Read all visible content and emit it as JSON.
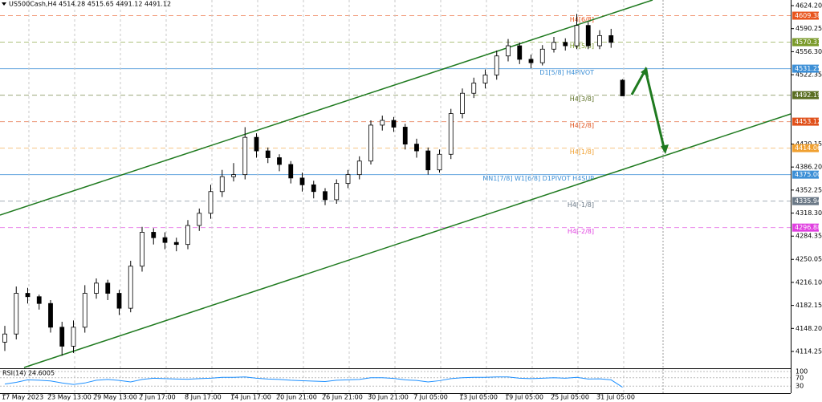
{
  "chart_data": {
    "type": "candlestick",
    "title": "US500Cash,H4  4514.28 4515.65 4491.12 4491.12",
    "categories": [
      "17 May 2023",
      null,
      null,
      null,
      "23 May 13:00",
      null,
      null,
      null,
      "29 May 13:00",
      null,
      null,
      null,
      "2 Jun 17:00",
      null,
      null,
      null,
      "8 Jun 17:00",
      null,
      null,
      null,
      "14 Jun 17:00",
      null,
      null,
      null,
      "20 Jun 21:00",
      null,
      null,
      null,
      "26 Jun 21:00",
      null,
      null,
      null,
      "30 Jun 21:00",
      null,
      null,
      null,
      "7 Jul 05:00",
      null,
      null,
      null,
      "13 Jul 05:00",
      null,
      null,
      null,
      "19 Jul 05:00",
      null,
      null,
      null,
      "25 Jul 05:00",
      null,
      null,
      null,
      "31 Jul 05:00",
      null,
      null
    ],
    "open": [
      4128,
      4140,
      4200,
      4195,
      4185,
      4150,
      4122,
      4150,
      4200,
      4215,
      4200,
      4178,
      4240,
      4290,
      4282,
      4275,
      4272,
      4300,
      4318,
      4350,
      4372,
      4375,
      4430,
      4410,
      4400,
      4390,
      4370,
      4360,
      4350,
      4338,
      4362,
      4375,
      4395,
      4448,
      4455,
      4445,
      4420,
      4410,
      4382,
      4405,
      4465,
      4495,
      4510,
      4522,
      4550,
      4565,
      4545,
      4540,
      4560,
      4570,
      4565,
      4595,
      4565,
      4580,
      4514.28
    ],
    "high": [
      4152,
      4210,
      4208,
      4198,
      4190,
      4158,
      4160,
      4212,
      4222,
      4220,
      4205,
      4248,
      4298,
      4296,
      4290,
      4282,
      4308,
      4325,
      4360,
      4382,
      4392,
      4445,
      4436,
      4415,
      4405,
      4395,
      4378,
      4366,
      4355,
      4368,
      4382,
      4402,
      4455,
      4462,
      4460,
      4450,
      4428,
      4415,
      4412,
      4472,
      4502,
      4518,
      4530,
      4558,
      4575,
      4570,
      4552,
      4566,
      4578,
      4576,
      4612,
      4600,
      4588,
      4590,
      4515.65
    ],
    "low": [
      4115,
      4132,
      4185,
      4176,
      4142,
      4108,
      4112,
      4142,
      4192,
      4190,
      4168,
      4172,
      4232,
      4272,
      4265,
      4262,
      4265,
      4292,
      4310,
      4342,
      4365,
      4368,
      4400,
      4392,
      4380,
      4362,
      4350,
      4340,
      4330,
      4332,
      4355,
      4368,
      4390,
      4440,
      4438,
      4412,
      4400,
      4375,
      4378,
      4398,
      4458,
      4488,
      4502,
      4515,
      4542,
      4538,
      4532,
      4536,
      4555,
      4558,
      4560,
      4560,
      4560,
      4562,
      4491.12
    ],
    "close": [
      4140,
      4200,
      4195,
      4185,
      4150,
      4122,
      4150,
      4200,
      4215,
      4200,
      4178,
      4240,
      4290,
      4282,
      4275,
      4272,
      4300,
      4318,
      4350,
      4372,
      4375,
      4430,
      4410,
      4400,
      4390,
      4370,
      4360,
      4350,
      4338,
      4362,
      4375,
      4395,
      4448,
      4455,
      4445,
      4420,
      4410,
      4382,
      4405,
      4465,
      4495,
      4510,
      4522,
      4550,
      4565,
      4545,
      4540,
      4560,
      4570,
      4565,
      4595,
      4565,
      4580,
      4570,
      4491.12
    ],
    "up_color": "#ffffff",
    "down_color": "#000000",
    "ylim": [
      4090.6,
      4632.5
    ],
    "yticks": [
      {
        "value": 4624.2,
        "label": "4624.20"
      },
      4590.25,
      {
        "value": 4556.3,
        "label": "4556.30"
      },
      4522.35,
      4420.15,
      {
        "value": 4386.2,
        "label": "4386.20"
      },
      4352.25,
      {
        "value": 4318.3,
        "label": "4318.30"
      },
      4284.35,
      4250.05,
      {
        "value": 4216.1,
        "label": "4216.10"
      },
      4182.15,
      {
        "value": 4148.2,
        "label": "4148.20"
      },
      4114.25
    ],
    "levels": [
      {
        "name": "H4[6/8]",
        "value": 4609.38,
        "color": "#e8541c"
      },
      {
        "name": "H4[5/8]",
        "value": 4570.31,
        "color": "#7a9a2a"
      },
      {
        "name": "D1[5/8] H4PIVOT",
        "value": 4531.25,
        "color": "#3c8fd6"
      },
      {
        "name": "H4[3/8]",
        "value": 4492.19,
        "color": "#5a6e22"
      },
      {
        "name": "H4[2/8]",
        "value": 4453.12,
        "color": "#e0501a"
      },
      {
        "name": "H4[1/8]",
        "value": 4414.06,
        "color": "#f0a030"
      },
      {
        "name": "MN1[7/8] W1[6/8] D1PIVOT H4SUP",
        "value": 4375,
        "value_label": "4375.00",
        "color": "#3c8fd6"
      },
      {
        "name": "H4[-1/8]",
        "value": 4335.94,
        "color": "#6a7886"
      },
      {
        "name": "H4[-2/8]",
        "value": 4296.88,
        "color": "#e040e0"
      }
    ],
    "rsi": {
      "title": "RSI(14) 24.6005",
      "color": "#1e90ff",
      "ylim": [
        0,
        100
      ],
      "yticks": [
        100,
        70,
        30
      ],
      "values": [
        40,
        48,
        60,
        58,
        55,
        45,
        38,
        45,
        58,
        62,
        57,
        50,
        62,
        68,
        66,
        64,
        63,
        66,
        68,
        72,
        72,
        74,
        68,
        64,
        62,
        58,
        56,
        54,
        52,
        58,
        60,
        62,
        70,
        70,
        67,
        60,
        57,
        50,
        56,
        66,
        70,
        72,
        72,
        74,
        74,
        68,
        66,
        68,
        70,
        68,
        72,
        64,
        65,
        60,
        24.6005
      ]
    }
  }
}
